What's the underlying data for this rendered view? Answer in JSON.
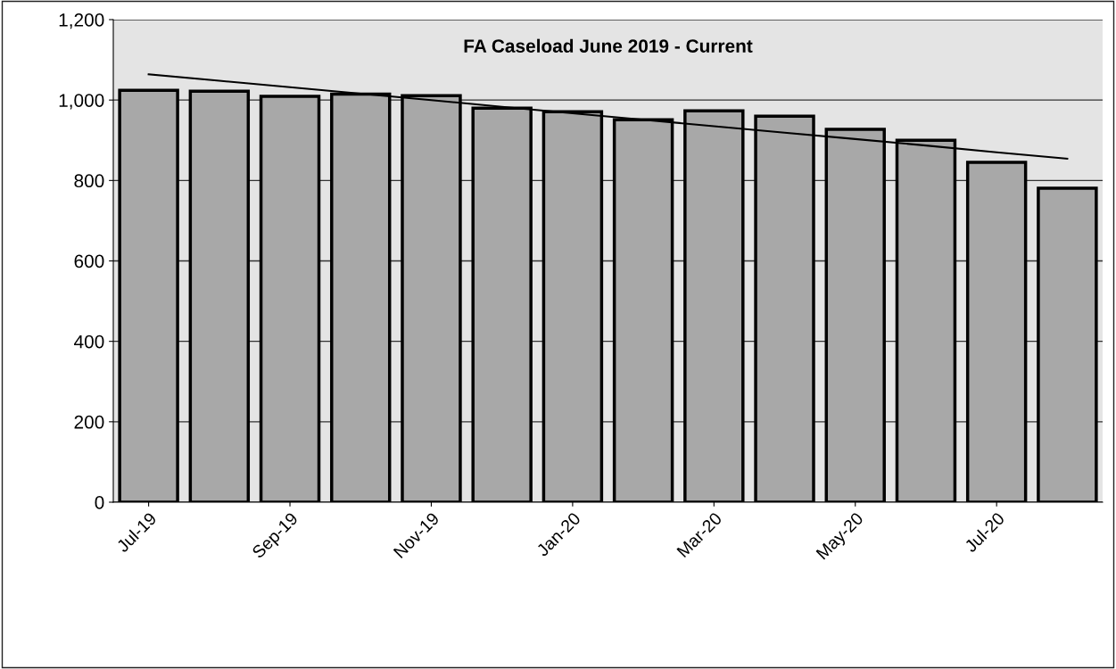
{
  "chart_data": {
    "type": "bar",
    "title": "FA Caseload June 2019 - Current",
    "categories": [
      "Jul-19",
      null,
      "Sep-19",
      null,
      "Nov-19",
      null,
      "Jan-20",
      null,
      "Mar-20",
      null,
      "May-20",
      null,
      "Jul-20",
      null
    ],
    "series": [
      {
        "color": "#a8a8a8",
        "values": [
          1024,
          1022,
          1009,
          1015,
          1011,
          980,
          971,
          951,
          973,
          960,
          927,
          900,
          845,
          781
        ]
      },
      {
        "type": "line",
        "color": "#000000",
        "values": [
          1064,
          1048,
          1032,
          1016,
          1000,
          983,
          967,
          951,
          935,
          919,
          903,
          887,
          870,
          854
        ]
      }
    ],
    "ylim": [
      0,
      1200
    ],
    "yticks": [
      {
        "value": 0,
        "label": "0"
      },
      {
        "value": 200,
        "label": "200"
      },
      {
        "value": 400,
        "label": "400"
      },
      {
        "value": 600,
        "label": "600"
      },
      {
        "value": 800,
        "label": "800"
      },
      {
        "value": 1000,
        "label": "1,000"
      },
      {
        "value": 1200,
        "label": "1,200"
      }
    ],
    "grid": "y",
    "legend": false
  }
}
